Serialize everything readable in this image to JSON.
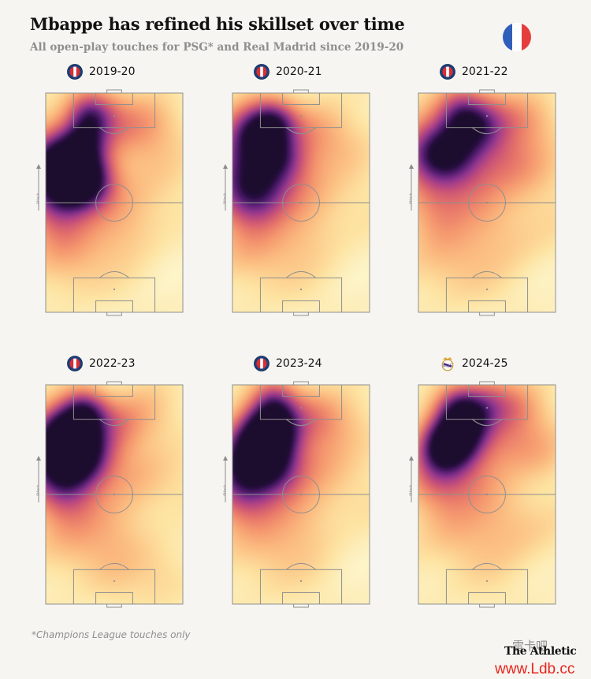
{
  "header": {
    "title": "Mbappe has refined his skillset over time",
    "subtitle": "All open-play touches for PSG* and Real Madrid since 2019-20"
  },
  "flag": {
    "icon": "france-flag-icon",
    "colors": [
      "#2f5fba",
      "#ffffff",
      "#e53d3d"
    ]
  },
  "colors": {
    "background": "#f6f5f1",
    "pitch_lines": "#8f8f8f",
    "heat_scale": [
      "#fdf7cf",
      "#fde3a1",
      "#fcc083",
      "#f69a6f",
      "#e4706a",
      "#c24c7a",
      "#8e3593",
      "#4c1b6e",
      "#1a0a2e"
    ]
  },
  "attack_label": "Attack",
  "footnote": "*Champions League touches only",
  "brand": "The Athletic",
  "watermark": {
    "cn": "雷卡吧",
    "url": "www.Ldb.cc"
  },
  "chart_data": [
    {
      "type": "heatmap",
      "season": "2019-20",
      "club": "PSG",
      "club_icon": "psg-crest-icon",
      "points": [
        [
          0.1,
          0.32,
          0.75,
          0.11
        ],
        [
          0.16,
          0.37,
          0.65,
          0.1
        ],
        [
          0.28,
          0.4,
          0.75,
          0.08
        ],
        [
          0.33,
          0.11,
          0.55,
          0.07
        ],
        [
          0.3,
          0.23,
          0.45,
          0.07
        ],
        [
          0.1,
          0.53,
          0.4,
          0.1
        ],
        [
          0.45,
          0.12,
          0.25,
          0.1
        ],
        [
          0.6,
          0.2,
          0.18,
          0.1
        ],
        [
          0.4,
          0.42,
          0.2,
          0.09
        ],
        [
          0.15,
          0.7,
          0.2,
          0.11
        ],
        [
          0.5,
          0.6,
          0.13,
          0.12
        ],
        [
          0.75,
          0.15,
          0.18,
          0.09
        ],
        [
          0.8,
          0.36,
          0.12,
          0.12
        ],
        [
          0.3,
          0.78,
          0.1,
          0.13
        ],
        [
          0.68,
          0.55,
          0.1,
          0.12
        ]
      ]
    },
    {
      "type": "heatmap",
      "season": "2020-21",
      "club": "PSG",
      "club_icon": "psg-crest-icon",
      "points": [
        [
          0.12,
          0.3,
          0.65,
          0.12
        ],
        [
          0.18,
          0.18,
          0.55,
          0.08
        ],
        [
          0.32,
          0.14,
          0.55,
          0.07
        ],
        [
          0.35,
          0.3,
          0.45,
          0.08
        ],
        [
          0.1,
          0.48,
          0.45,
          0.1
        ],
        [
          0.25,
          0.46,
          0.35,
          0.09
        ],
        [
          0.55,
          0.18,
          0.25,
          0.1
        ],
        [
          0.5,
          0.4,
          0.2,
          0.1
        ],
        [
          0.15,
          0.68,
          0.22,
          0.11
        ],
        [
          0.75,
          0.25,
          0.16,
          0.1
        ],
        [
          0.5,
          0.62,
          0.13,
          0.12
        ],
        [
          0.8,
          0.5,
          0.1,
          0.13
        ],
        [
          0.35,
          0.8,
          0.09,
          0.13
        ]
      ]
    },
    {
      "type": "heatmap",
      "season": "2021-22",
      "club": "PSG",
      "club_icon": "psg-crest-icon",
      "points": [
        [
          0.1,
          0.28,
          0.65,
          0.11
        ],
        [
          0.25,
          0.28,
          0.5,
          0.09
        ],
        [
          0.32,
          0.1,
          0.55,
          0.08
        ],
        [
          0.42,
          0.18,
          0.4,
          0.08
        ],
        [
          0.55,
          0.12,
          0.3,
          0.09
        ],
        [
          0.78,
          0.14,
          0.22,
          0.09
        ],
        [
          0.6,
          0.3,
          0.3,
          0.1
        ],
        [
          0.4,
          0.42,
          0.25,
          0.1
        ],
        [
          0.15,
          0.52,
          0.3,
          0.1
        ],
        [
          0.8,
          0.35,
          0.18,
          0.11
        ],
        [
          0.2,
          0.72,
          0.18,
          0.12
        ],
        [
          0.55,
          0.62,
          0.13,
          0.12
        ],
        [
          0.85,
          0.6,
          0.1,
          0.12
        ],
        [
          0.4,
          0.82,
          0.08,
          0.13
        ]
      ]
    },
    {
      "type": "heatmap",
      "season": "2022-23",
      "club": "PSG",
      "club_icon": "psg-crest-icon",
      "points": [
        [
          0.18,
          0.24,
          1.0,
          0.09
        ],
        [
          0.1,
          0.33,
          0.75,
          0.11
        ],
        [
          0.3,
          0.13,
          0.6,
          0.07
        ],
        [
          0.3,
          0.34,
          0.55,
          0.09
        ],
        [
          0.15,
          0.48,
          0.45,
          0.1
        ],
        [
          0.5,
          0.2,
          0.3,
          0.09
        ],
        [
          0.7,
          0.14,
          0.2,
          0.1
        ],
        [
          0.6,
          0.4,
          0.18,
          0.11
        ],
        [
          0.2,
          0.68,
          0.22,
          0.12
        ],
        [
          0.5,
          0.65,
          0.14,
          0.12
        ],
        [
          0.85,
          0.45,
          0.1,
          0.12
        ],
        [
          0.85,
          0.85,
          0.12,
          0.1
        ],
        [
          0.5,
          0.85,
          0.1,
          0.12
        ]
      ]
    },
    {
      "type": "heatmap",
      "season": "2023-24",
      "club": "PSG",
      "club_icon": "psg-crest-icon",
      "points": [
        [
          0.3,
          0.2,
          0.85,
          0.08
        ],
        [
          0.23,
          0.28,
          0.8,
          0.09
        ],
        [
          0.12,
          0.36,
          0.7,
          0.11
        ],
        [
          0.32,
          0.08,
          0.45,
          0.07
        ],
        [
          0.35,
          0.4,
          0.4,
          0.09
        ],
        [
          0.1,
          0.5,
          0.4,
          0.1
        ],
        [
          0.55,
          0.15,
          0.3,
          0.09
        ],
        [
          0.6,
          0.35,
          0.22,
          0.1
        ],
        [
          0.75,
          0.2,
          0.2,
          0.1
        ],
        [
          0.2,
          0.68,
          0.18,
          0.12
        ],
        [
          0.5,
          0.6,
          0.14,
          0.12
        ],
        [
          0.85,
          0.5,
          0.1,
          0.12
        ],
        [
          0.4,
          0.82,
          0.09,
          0.13
        ]
      ]
    },
    {
      "type": "heatmap",
      "season": "2024-25",
      "club": "Real Madrid",
      "club_icon": "real-madrid-crest-icon",
      "points": [
        [
          0.27,
          0.26,
          0.85,
          0.08
        ],
        [
          0.3,
          0.12,
          0.6,
          0.07
        ],
        [
          0.17,
          0.3,
          0.55,
          0.09
        ],
        [
          0.4,
          0.18,
          0.45,
          0.08
        ],
        [
          0.5,
          0.08,
          0.35,
          0.08
        ],
        [
          0.7,
          0.12,
          0.3,
          0.09
        ],
        [
          0.6,
          0.28,
          0.25,
          0.1
        ],
        [
          0.15,
          0.45,
          0.35,
          0.1
        ],
        [
          0.4,
          0.42,
          0.22,
          0.1
        ],
        [
          0.85,
          0.3,
          0.2,
          0.1
        ],
        [
          0.25,
          0.65,
          0.18,
          0.12
        ],
        [
          0.6,
          0.6,
          0.14,
          0.12
        ],
        [
          0.85,
          0.65,
          0.1,
          0.12
        ],
        [
          0.45,
          0.82,
          0.08,
          0.13
        ]
      ]
    }
  ]
}
